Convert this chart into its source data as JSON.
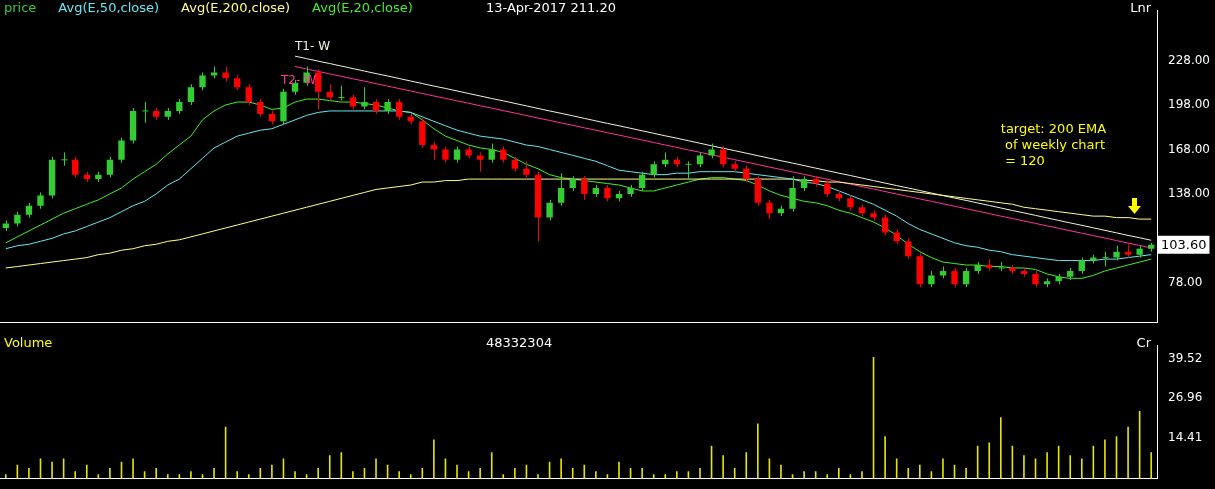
{
  "chart_data": [
    {
      "type": "candlestick",
      "subtitle": "13-Apr-2017 211.20",
      "legend": "top left",
      "tick_labels": "y",
      "categories": [
        null,
        null,
        null,
        null,
        null,
        null,
        null,
        null,
        null,
        null,
        null,
        null,
        null,
        null,
        null,
        null,
        null,
        null,
        null,
        null,
        null,
        null,
        null,
        null,
        null,
        null,
        null,
        null,
        null,
        null,
        null,
        null,
        null,
        null,
        null,
        null,
        null,
        null,
        null,
        null,
        null,
        null,
        null,
        null,
        null,
        null,
        null,
        null,
        null,
        null,
        null,
        null,
        null,
        null,
        null,
        null,
        null,
        null,
        null,
        null,
        null,
        null,
        null,
        null,
        null,
        null,
        null,
        null,
        null,
        null,
        null,
        null,
        null,
        null,
        null,
        null,
        null,
        null,
        null,
        null,
        null,
        null,
        null,
        null,
        null,
        null,
        null,
        null,
        null,
        null,
        null,
        null,
        null,
        null,
        null,
        null,
        null,
        null,
        null,
        null
      ],
      "ylim": [
        51,
        262
      ],
      "yticks": [
        {
          "value": 78,
          "label": "78.00"
        },
        {
          "value": 138,
          "label": "138.00"
        },
        {
          "value": 168,
          "label": "168.00"
        },
        {
          "value": 198,
          "label": "198.00"
        },
        {
          "value": 228,
          "label": "228.00"
        }
      ],
      "annotations": [
        "Lnr",
        "103.60",
        "target: 200 EMA\n of weekly chart\n = 120"
      ],
      "series": [
        {
          "name": "price",
          "type": "candlestick",
          "color": "#33cc33",
          "ohlc": [
            [
              115,
              120,
              113,
              118
            ],
            [
              118,
              126,
              116,
              124
            ],
            [
              124,
              132,
              122,
              130
            ],
            [
              130,
              139,
              128,
              137
            ],
            [
              137,
              163,
              135,
              161
            ],
            [
              161,
              166,
              157,
              161
            ],
            [
              161,
              163,
              149,
              151
            ],
            [
              151,
              153,
              146,
              148
            ],
            [
              148,
              153,
              146,
              151
            ],
            [
              151,
              163,
              149,
              161
            ],
            [
              161,
              176,
              159,
              174
            ],
            [
              174,
              196,
              172,
              194
            ],
            [
              194,
              200,
              186,
              194
            ],
            [
              194,
              196,
              188,
              190
            ],
            [
              190,
              196,
              188,
              194
            ],
            [
              194,
              202,
              192,
              200
            ],
            [
              200,
              212,
              198,
              210
            ],
            [
              210,
              220,
              208,
              218
            ],
            [
              218,
              224,
              216,
              220
            ],
            [
              220,
              224,
              214,
              216
            ],
            [
              216,
              218,
              208,
              210
            ],
            [
              210,
              212,
              198,
              200
            ],
            [
              200,
              202,
              190,
              192
            ],
            [
              192,
              194,
              185,
              187
            ],
            [
              187,
              209,
              185,
              207
            ],
            [
              207,
              215,
              205,
              213
            ],
            [
              213,
              224,
              211,
              220
            ],
            [
              220,
              222,
              195,
              207
            ],
            [
              207,
              212,
              201,
              203
            ],
            [
              203,
              211,
              201,
              203
            ],
            [
              203,
              205,
              195,
              197
            ],
            [
              197,
              210,
              195,
              200
            ],
            [
              200,
              202,
              192,
              194
            ],
            [
              194,
              202,
              192,
              200
            ],
            [
              200,
              202,
              188,
              190
            ],
            [
              190,
              192,
              185,
              187
            ],
            [
              187,
              189,
              169,
              171
            ],
            [
              171,
              173,
              161,
              168
            ],
            [
              168,
              170,
              159,
              161
            ],
            [
              161,
              170,
              159,
              168
            ],
            [
              168,
              170,
              162,
              164
            ],
            [
              164,
              166,
              153,
              161
            ],
            [
              161,
              172,
              159,
              168
            ],
            [
              168,
              170,
              159,
              161
            ],
            [
              161,
              163,
              153,
              155
            ],
            [
              155,
              160,
              149,
              151
            ],
            [
              151,
              153,
              106,
              122
            ],
            [
              122,
              134,
              120,
              132
            ],
            [
              132,
              152,
              130,
              142
            ],
            [
              142,
              150,
              140,
              148
            ],
            [
              148,
              150,
              134,
              138
            ],
            [
              138,
              144,
              136,
              142
            ],
            [
              142,
              144,
              133,
              135
            ],
            [
              135,
              140,
              133,
              138
            ],
            [
              138,
              144,
              136,
              142
            ],
            [
              142,
              153,
              140,
              151
            ],
            [
              151,
              160,
              149,
              158
            ],
            [
              158,
              166,
              156,
              161
            ],
            [
              161,
              163,
              156,
              158
            ],
            [
              158,
              160,
              148,
              158
            ],
            [
              158,
              166,
              156,
              164
            ],
            [
              164,
              172,
              162,
              168
            ],
            [
              168,
              170,
              156,
              158
            ],
            [
              158,
              160,
              153,
              155
            ],
            [
              155,
              157,
              146,
              148
            ],
            [
              148,
              150,
              130,
              132
            ],
            [
              132,
              134,
              121,
              125
            ],
            [
              125,
              130,
              123,
              128
            ],
            [
              128,
              150,
              126,
              142
            ],
            [
              142,
              150,
              140,
              148
            ],
            [
              148,
              150,
              143,
              145
            ],
            [
              145,
              147,
              136,
              138
            ],
            [
              138,
              140,
              133,
              135
            ],
            [
              135,
              137,
              127,
              129
            ],
            [
              129,
              131,
              123,
              125
            ],
            [
              125,
              127,
              120,
              122
            ],
            [
              122,
              124,
              110,
              112
            ],
            [
              112,
              114,
              104,
              106
            ],
            [
              106,
              108,
              94,
              96
            ],
            [
              96,
              98,
              75,
              77
            ],
            [
              77,
              86,
              75,
              83
            ],
            [
              83,
              89,
              81,
              86
            ],
            [
              86,
              88,
              75,
              77
            ],
            [
              77,
              88,
              75,
              86
            ],
            [
              86,
              92,
              84,
              90
            ],
            [
              90,
              94,
              86,
              88
            ],
            [
              88,
              92,
              86,
              88
            ],
            [
              88,
              90,
              84,
              86
            ],
            [
              86,
              88,
              82,
              84
            ],
            [
              84,
              86,
              75,
              77
            ],
            [
              77,
              81,
              75,
              79
            ],
            [
              79,
              84,
              77,
              82
            ],
            [
              82,
              88,
              80,
              86
            ],
            [
              86,
              95,
              84,
              93
            ],
            [
              93,
              97,
              91,
              95
            ],
            [
              95,
              99,
              89,
              95
            ],
            [
              95,
              103,
              93,
              99
            ],
            [
              99,
              104,
              95,
              97
            ],
            [
              97,
              103,
              95,
              101
            ],
            [
              101,
              105,
              99,
              103.6
            ]
          ],
          "colors": [
            "#33cc33",
            "#33cc33",
            "#33cc33",
            "#33cc33",
            "#33cc33",
            "#33cc33",
            "#ff0000",
            "#ff0000",
            "#33cc33",
            "#33cc33",
            "#33cc33",
            "#33cc33",
            "#33cc33",
            "#ff0000",
            "#33cc33",
            "#33cc33",
            "#33cc33",
            "#33cc33",
            "#33cc33",
            "#ff0000",
            "#ff0000",
            "#ff0000",
            "#ff0000",
            "#ff0000",
            "#33cc33",
            "#33cc33",
            "#33cc33",
            "#ff0000",
            "#ff0000",
            "#33cc33",
            "#ff0000",
            "#33cc33",
            "#ff0000",
            "#33cc33",
            "#ff0000",
            "#ff0000",
            "#ff0000",
            "#ff0000",
            "#ff0000",
            "#33cc33",
            "#ff0000",
            "#ff0000",
            "#33cc33",
            "#ff0000",
            "#ff0000",
            "#ff0000",
            "#ff0000",
            "#33cc33",
            "#33cc33",
            "#33cc33",
            "#ff0000",
            "#33cc33",
            "#ff0000",
            "#33cc33",
            "#33cc33",
            "#33cc33",
            "#33cc33",
            "#33cc33",
            "#ff0000",
            "#33cc33",
            "#33cc33",
            "#33cc33",
            "#ff0000",
            "#ff0000",
            "#ff0000",
            "#ff0000",
            "#ff0000",
            "#33cc33",
            "#33cc33",
            "#33cc33",
            "#ff0000",
            "#ff0000",
            "#ff0000",
            "#ff0000",
            "#ff0000",
            "#ff0000",
            "#ff0000",
            "#ff0000",
            "#ff0000",
            "#ff0000",
            "#33cc33",
            "#33cc33",
            "#ff0000",
            "#33cc33",
            "#33cc33",
            "#ff0000",
            "#33cc33",
            "#ff0000",
            "#ff0000",
            "#ff0000",
            "#33cc33",
            "#33cc33",
            "#33cc33",
            "#33cc33",
            "#33cc33",
            "#33cc33",
            "#33cc33",
            "#ff0000",
            "#33cc33",
            "#33cc33"
          ]
        },
        {
          "name": "Avg(E,50,close)",
          "type": "line",
          "color": "#66e6f0",
          "values": [
            101,
            103,
            104,
            106,
            108,
            111,
            113,
            116,
            119,
            122,
            126,
            130,
            133,
            138,
            144,
            148,
            155,
            162,
            169,
            173,
            177,
            179,
            181,
            182,
            185,
            188,
            191,
            193,
            194,
            194,
            194,
            194,
            194,
            194,
            194,
            193,
            190,
            187,
            184,
            181,
            179,
            177,
            176,
            175,
            173,
            171,
            170,
            168,
            166,
            164,
            162,
            160,
            157,
            154,
            153,
            152,
            151,
            151,
            152,
            152,
            153,
            153,
            153,
            153,
            152,
            151,
            150,
            149,
            148,
            146,
            145,
            143,
            140,
            137,
            134,
            131,
            127,
            123,
            118,
            114,
            111,
            108,
            105,
            103,
            102,
            100,
            99,
            97,
            96,
            95,
            94,
            93,
            93,
            93,
            93,
            94,
            94,
            95,
            96,
            97
          ]
        },
        {
          "name": "Avg(E,200,close)",
          "type": "line",
          "color": "#ffff88",
          "values": [
            88,
            89,
            90,
            91,
            92,
            93,
            94,
            95,
            97,
            98,
            100,
            101,
            103,
            104,
            106,
            107,
            109,
            111,
            113,
            115,
            117,
            119,
            121,
            123,
            125,
            127,
            129,
            131,
            133,
            135,
            137,
            139,
            141,
            142,
            143,
            144,
            146,
            146,
            147,
            147,
            148,
            148,
            148,
            148,
            148,
            148,
            148,
            148,
            148,
            148,
            148,
            148,
            148,
            148,
            148,
            148,
            148,
            148,
            148,
            148,
            148,
            148,
            148,
            148,
            148,
            148,
            148,
            148,
            148,
            147,
            147,
            146,
            146,
            145,
            144,
            143,
            142,
            141,
            140,
            139,
            138,
            137,
            136,
            135,
            134,
            133,
            132,
            131,
            129,
            128,
            127,
            126,
            125,
            124,
            123,
            123,
            122,
            122,
            121,
            121
          ]
        },
        {
          "name": "Avg(E,20,close)",
          "type": "line",
          "color": "#44ee22",
          "values": [
            105,
            109,
            113,
            117,
            121,
            125,
            128,
            131,
            134,
            138,
            142,
            148,
            153,
            158,
            165,
            171,
            177,
            188,
            194,
            198,
            200,
            200,
            198,
            195,
            196,
            200,
            202,
            202,
            201,
            200,
            200,
            199,
            198,
            196,
            194,
            193,
            188,
            182,
            177,
            174,
            171,
            169,
            168,
            166,
            162,
            158,
            155,
            151,
            149,
            148,
            147,
            146,
            145,
            144,
            142,
            140,
            140,
            142,
            144,
            146,
            148,
            149,
            149,
            148,
            147,
            144,
            140,
            137,
            135,
            133,
            132,
            130,
            127,
            125,
            122,
            119,
            115,
            110,
            104,
            99,
            95,
            92,
            91,
            90,
            90,
            89,
            89,
            88,
            88,
            87,
            84,
            82,
            81,
            81,
            83,
            86,
            88,
            90,
            92,
            94
          ]
        },
        {
          "name": "T1- W",
          "type": "line",
          "color": "#f0f0e0",
          "values": [
            null,
            null,
            null,
            null,
            null,
            null,
            null,
            null,
            null,
            null,
            null,
            null,
            null,
            null,
            null,
            null,
            null,
            null,
            null,
            null,
            null,
            null,
            null,
            null,
            null,
            231.0,
            229.3,
            227.6,
            226.0,
            224.3,
            222.6,
            220.9,
            219.2,
            217.6,
            215.9,
            214.2,
            212.5,
            210.8,
            209.2,
            207.5,
            205.8,
            204.1,
            202.4,
            200.8,
            199.1,
            197.4,
            195.7,
            194.0,
            192.4,
            190.7,
            189.0,
            187.3,
            185.6,
            184.0,
            182.3,
            180.6,
            178.9,
            177.2,
            175.6,
            173.9,
            172.2,
            170.5,
            168.8,
            167.2,
            165.5,
            163.8,
            162.1,
            160.4,
            158.8,
            157.1,
            155.4,
            153.7,
            152.0,
            150.4,
            148.7,
            147.0,
            145.3,
            143.6,
            142.0,
            140.3,
            138.6,
            136.9,
            135.2,
            133.6,
            131.9,
            130.2,
            128.5,
            126.8,
            125.2,
            123.5,
            121.8,
            120.1,
            118.4,
            116.8,
            115.1,
            113.4,
            111.7,
            110.0,
            108.4,
            106.7
          ]
        },
        {
          "name": "T2- W",
          "type": "line",
          "color": "#ff3399",
          "values": [
            null,
            null,
            null,
            null,
            null,
            null,
            null,
            null,
            null,
            null,
            null,
            null,
            null,
            null,
            null,
            null,
            null,
            null,
            null,
            null,
            null,
            null,
            null,
            null,
            null,
            224.0,
            222.3,
            220.7,
            219.0,
            217.4,
            215.7,
            214.1,
            212.4,
            210.8,
            209.1,
            207.5,
            205.8,
            204.1,
            202.5,
            200.8,
            199.2,
            197.5,
            195.9,
            194.2,
            192.6,
            190.9,
            189.2,
            187.6,
            185.9,
            184.3,
            182.6,
            181.0,
            179.3,
            177.7,
            176.0,
            174.4,
            172.7,
            171.0,
            169.4,
            167.7,
            166.1,
            164.4,
            162.8,
            161.1,
            159.5,
            157.8,
            156.1,
            154.5,
            152.8,
            151.2,
            149.5,
            147.9,
            146.2,
            144.6,
            142.9,
            141.3,
            139.6,
            137.9,
            136.3,
            134.6,
            133.0,
            131.3,
            129.7,
            128.0,
            126.4,
            124.7,
            123.0,
            121.4,
            119.7,
            118.1,
            116.4,
            114.8,
            113.1,
            111.5,
            109.8,
            108.2,
            106.5,
            104.8,
            103.2,
            101.5
          ]
        }
      ]
    },
    {
      "type": "bar",
      "title": "Volume",
      "subtitle": "48332304",
      "tick_labels": "y",
      "color": "#e6e600",
      "categories": [
        null,
        null,
        null,
        null,
        null,
        null,
        null,
        null,
        null,
        null,
        null,
        null,
        null,
        null,
        null,
        null,
        null,
        null,
        null,
        null,
        null,
        null,
        null,
        null,
        null,
        null,
        null,
        null,
        null,
        null,
        null,
        null,
        null,
        null,
        null,
        null,
        null,
        null,
        null,
        null,
        null,
        null,
        null,
        null,
        null,
        null,
        null,
        null,
        null,
        null,
        null,
        null,
        null,
        null,
        null,
        null,
        null,
        null,
        null,
        null,
        null,
        null,
        null,
        null,
        null,
        null,
        null,
        null,
        null,
        null,
        null,
        null,
        null,
        null,
        null,
        null,
        null,
        null,
        null,
        null,
        null,
        null,
        null,
        null,
        null,
        null,
        null,
        null,
        null,
        null,
        null,
        null,
        null,
        null,
        null,
        null,
        null,
        null,
        null,
        null
      ],
      "ylim": [
        1.6,
        43.7
      ],
      "yticks": [
        14.41,
        26.96,
        39.52
      ],
      "annotations": [
        "Cr"
      ],
      "values": [
        3,
        6,
        5,
        8,
        7,
        8,
        4,
        6,
        3,
        5,
        7,
        8,
        4,
        5,
        3,
        3,
        4,
        3,
        5,
        18,
        4,
        3,
        5,
        6,
        8,
        4,
        3,
        5,
        9,
        10,
        4,
        5,
        8,
        6,
        4,
        3,
        5,
        14,
        8,
        6,
        4,
        5,
        10,
        3,
        5,
        6,
        3,
        7,
        8,
        5,
        6,
        4,
        3,
        7,
        5,
        5,
        3,
        3,
        4,
        4,
        5,
        12,
        9,
        5,
        10,
        19,
        8,
        6,
        3,
        4,
        4,
        3,
        5,
        3,
        4,
        40,
        15,
        8,
        5,
        6,
        4,
        8,
        6,
        5,
        12,
        13,
        21,
        12,
        9,
        8,
        10,
        12,
        9,
        8,
        12,
        14,
        15,
        18,
        23,
        10
      ]
    }
  ]
}
